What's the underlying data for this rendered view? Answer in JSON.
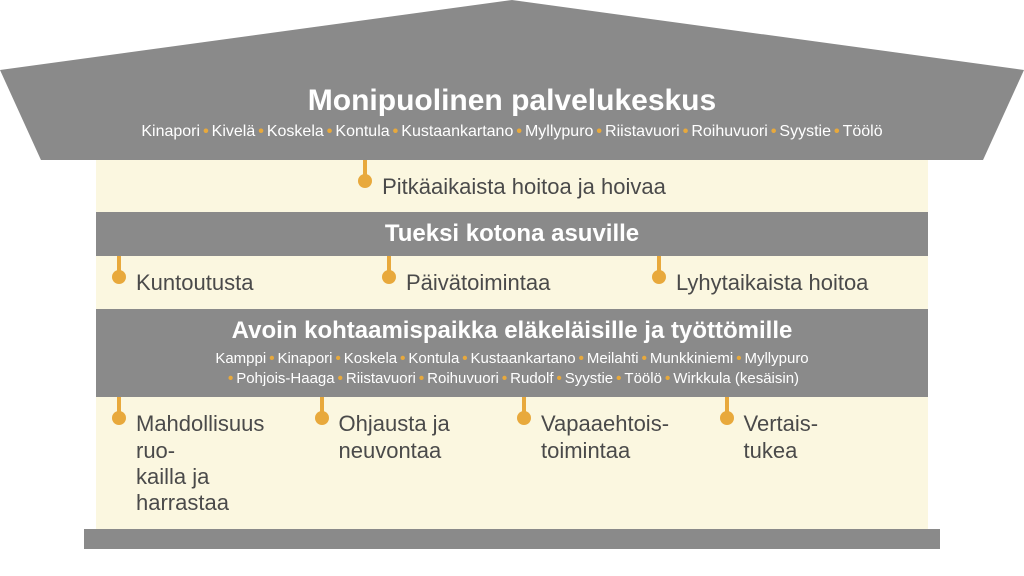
{
  "colors": {
    "gray": "#8a8a8a",
    "cream": "#fbf7e0",
    "accent": "#e8a93c",
    "text_dark": "#4a4a4a",
    "text_light": "#ffffff"
  },
  "roof": {
    "title": "Monipuolinen palvelukeskus",
    "locations": [
      "Kinapori",
      "Kivelä",
      "Koskela",
      "Kontula",
      "Kustaankartano",
      "Myllypuro",
      "Riistavuori",
      "Roihuvuori",
      "Syystie",
      "Töölö"
    ]
  },
  "tier1": {
    "items": [
      "Pitkäaikaista hoitoa ja hoivaa"
    ]
  },
  "tier2": {
    "title": "Tueksi kotona asuville",
    "items": [
      "Kuntoutusta",
      "Päivätoimintaa",
      "Lyhytaikaista hoitoa"
    ]
  },
  "tier3": {
    "title": "Avoin kohtaamispaikka eläkeläisille ja työttömille",
    "locations": [
      "Kamppi",
      "Kinapori",
      "Koskela",
      "Kontula",
      "Kustaankartano",
      "Meilahti",
      "Munkkiniemi",
      "Myllypuro",
      "Pohjois-Haaga",
      "Riistavuori",
      "Roihuvuori",
      "Rudolf",
      "Syystie",
      "Töölö",
      "Wirkkula (kesäisin)"
    ],
    "items": [
      "Mahdollisuus ruo-\nkailla ja harrastaa",
      "Ohjausta ja\nneuvontaa",
      "Vapaaehtois-\ntoimintaa",
      "Vertais-\ntukea"
    ]
  },
  "typography": {
    "roof_title_fontsize": 30,
    "header_fontsize": 24,
    "item_fontsize": 22,
    "locations_fontsize": 16
  }
}
